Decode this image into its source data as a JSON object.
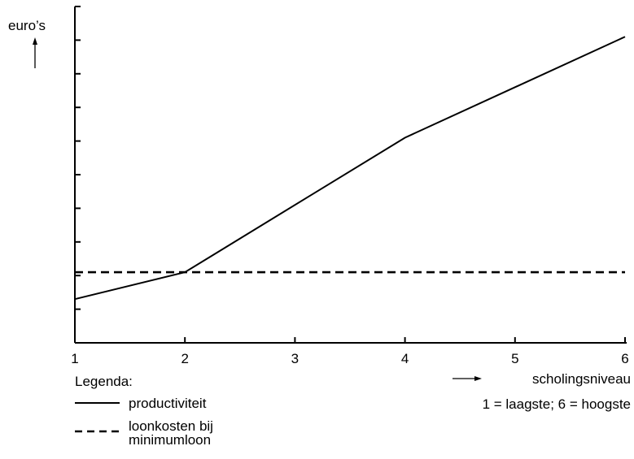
{
  "chart_data": {
    "type": "line",
    "ylabel": "euro’s",
    "xlabel": "scholingsniveau",
    "xnote": "1 = laagste; 6 = hoogste",
    "x": [
      1,
      2,
      3,
      4,
      5,
      6
    ],
    "xlim": [
      1,
      6
    ],
    "ylim": [
      0,
      10
    ],
    "y_ticks": 10,
    "series": [
      {
        "name": "productiviteit",
        "style": "solid",
        "x": [
          1,
          2,
          4,
          6
        ],
        "values": [
          1.3,
          2.1,
          6.1,
          9.1
        ]
      },
      {
        "name": "loonkosten bij minimumloon",
        "style": "dashed",
        "x": [
          1,
          6
        ],
        "values": [
          2.1,
          2.1
        ]
      }
    ],
    "legend": {
      "title": "Legenda:",
      "position": "bottom-left"
    },
    "grid": false
  }
}
